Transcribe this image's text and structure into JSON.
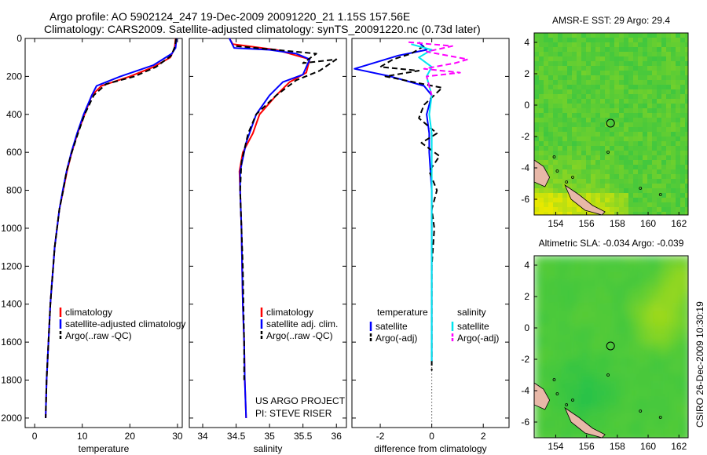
{
  "header": {
    "line1": "Argo profile: AO 5902124_247 19-Dec-2009 20091220_21 1.15S 157.56E",
    "line2": "Climatology: CARS2009. Satellite-adjusted climatology: synTS_20091220.nc (0.73d later)"
  },
  "side_stamp": "CSIRO 26-Dec-2009 10:30:19",
  "colors": {
    "climatology": "#ff0000",
    "satellite": "#0000ff",
    "argo": "#000000",
    "salinity_satellite": "#00e5ee",
    "salinity_argo": "#ff00ff",
    "map_green": "#22c14a",
    "map_yellow": "#e8e800",
    "land": "#e8b8a8"
  },
  "chart_data": [
    {
      "type": "line",
      "panel": "temperature",
      "xlabel": "temperature",
      "ylabel": "",
      "xlim": [
        -2,
        31
      ],
      "ylim": [
        2050,
        0
      ],
      "xticks": [
        0,
        10,
        20,
        30
      ],
      "yticks": [
        0,
        200,
        400,
        600,
        800,
        1000,
        1200,
        1400,
        1600,
        1800,
        2000
      ],
      "legend": [
        "climatology",
        "satellite-adjusted climatology",
        "Argo(..raw -QC)"
      ],
      "series": [
        {
          "name": "climatology",
          "color": "#ff0000",
          "dash": false,
          "points": [
            [
              29.6,
              0
            ],
            [
              29.4,
              50
            ],
            [
              28.5,
              100
            ],
            [
              25,
              150
            ],
            [
              20,
              200
            ],
            [
              14,
              250
            ],
            [
              12,
              300
            ],
            [
              10.5,
              400
            ],
            [
              9,
              500
            ],
            [
              7.8,
              600
            ],
            [
              6.8,
              700
            ],
            [
              6,
              800
            ],
            [
              5.2,
              900
            ],
            [
              4.7,
              1000
            ],
            [
              4.2,
              1100
            ],
            [
              3.9,
              1200
            ],
            [
              3.6,
              1300
            ],
            [
              3.3,
              1400
            ],
            [
              3.1,
              1500
            ],
            [
              2.9,
              1600
            ],
            [
              2.7,
              1700
            ],
            [
              2.5,
              1800
            ],
            [
              2.4,
              1900
            ],
            [
              2.3,
              2000
            ]
          ]
        },
        {
          "name": "satellite-adjusted climatology",
          "color": "#0000ff",
          "dash": false,
          "points": [
            [
              29.8,
              0
            ],
            [
              29.6,
              50
            ],
            [
              28.8,
              80
            ],
            [
              25,
              140
            ],
            [
              18,
              200
            ],
            [
              13,
              250
            ],
            [
              12,
              300
            ],
            [
              10.3,
              400
            ],
            [
              8.9,
              500
            ],
            [
              7.7,
              600
            ],
            [
              6.7,
              700
            ],
            [
              5.9,
              800
            ],
            [
              5.2,
              900
            ],
            [
              4.7,
              1000
            ],
            [
              4.2,
              1100
            ],
            [
              3.9,
              1200
            ],
            [
              3.6,
              1300
            ],
            [
              3.3,
              1400
            ],
            [
              3.1,
              1500
            ],
            [
              2.9,
              1600
            ],
            [
              2.7,
              1700
            ],
            [
              2.5,
              1800
            ],
            [
              2.4,
              1900
            ],
            [
              2.3,
              2000
            ]
          ]
        },
        {
          "name": "Argo(..raw -QC)",
          "color": "#000000",
          "dash": true,
          "points": [
            [
              29.7,
              0
            ],
            [
              29.5,
              40
            ],
            [
              28.7,
              90
            ],
            [
              25.5,
              150
            ],
            [
              21,
              200
            ],
            [
              15,
              240
            ],
            [
              12.4,
              300
            ],
            [
              10.5,
              400
            ],
            [
              9.1,
              500
            ],
            [
              7.8,
              600
            ],
            [
              6.7,
              700
            ],
            [
              6,
              800
            ],
            [
              5.2,
              900
            ],
            [
              4.7,
              1000
            ],
            [
              4.2,
              1100
            ],
            [
              3.9,
              1200
            ],
            [
              3.6,
              1300
            ],
            [
              3.3,
              1400
            ],
            [
              3.1,
              1500
            ],
            [
              2.9,
              1600
            ],
            [
              2.7,
              1700
            ],
            [
              2.5,
              1800
            ],
            [
              2.4,
              1900
            ],
            [
              2.3,
              2000
            ]
          ]
        }
      ]
    },
    {
      "type": "line",
      "panel": "salinity",
      "xlabel": "salinity",
      "ylabel": "",
      "xlim": [
        33.8,
        36.15
      ],
      "ylim": [
        2050,
        0
      ],
      "xticks": [
        34,
        34.5,
        35,
        35.5,
        36
      ],
      "xticklabels": [
        "34",
        "34.5",
        "35",
        "35.5",
        "36"
      ],
      "legend": [
        "climatology",
        "satellite adj. clim.",
        "Argo(..raw -QC)"
      ],
      "annotation": [
        "US ARGO PROJECT",
        "PI: STEVE RISER"
      ],
      "series": [
        {
          "name": "climatology",
          "color": "#ff0000",
          "dash": false,
          "points": [
            [
              34.4,
              0
            ],
            [
              34.45,
              30
            ],
            [
              35.1,
              60
            ],
            [
              35.6,
              110
            ],
            [
              35.55,
              180
            ],
            [
              35.3,
              230
            ],
            [
              35.1,
              300
            ],
            [
              34.85,
              400
            ],
            [
              34.75,
              500
            ],
            [
              34.6,
              600
            ],
            [
              34.55,
              700
            ],
            [
              34.56,
              800
            ],
            [
              34.57,
              900
            ],
            [
              34.58,
              1000
            ],
            [
              34.59,
              1200
            ],
            [
              34.6,
              1400
            ],
            [
              34.62,
              1600
            ],
            [
              34.63,
              1800
            ],
            [
              34.65,
              2000
            ]
          ]
        },
        {
          "name": "satellite adj. clim.",
          "color": "#0000ff",
          "dash": false,
          "points": [
            [
              34.4,
              0
            ],
            [
              34.47,
              50
            ],
            [
              35.0,
              60
            ],
            [
              35.4,
              80
            ],
            [
              35.6,
              110
            ],
            [
              35.5,
              190
            ],
            [
              35.2,
              230
            ],
            [
              35.0,
              300
            ],
            [
              34.8,
              400
            ],
            [
              34.65,
              550
            ],
            [
              34.56,
              700
            ],
            [
              34.56,
              800
            ],
            [
              34.57,
              900
            ],
            [
              34.58,
              1000
            ],
            [
              34.59,
              1200
            ],
            [
              34.6,
              1400
            ],
            [
              34.62,
              1600
            ],
            [
              34.63,
              1800
            ],
            [
              34.65,
              2000
            ]
          ]
        },
        {
          "name": "Argo(..raw -QC)",
          "color": "#000000",
          "dash": true,
          "points": [
            [
              34.5,
              40
            ],
            [
              35.7,
              80
            ],
            [
              35.5,
              130
            ],
            [
              36.0,
              110
            ],
            [
              35.75,
              170
            ],
            [
              35.4,
              220
            ],
            [
              35.1,
              300
            ],
            [
              34.8,
              400
            ],
            [
              34.68,
              500
            ],
            [
              34.58,
              650
            ],
            [
              34.56,
              800
            ],
            [
              34.58,
              1000
            ],
            [
              34.6,
              1200
            ],
            [
              34.61,
              1400
            ],
            [
              34.62,
              1600
            ],
            [
              34.62,
              1800
            ]
          ]
        }
      ]
    },
    {
      "type": "line",
      "panel": "difference",
      "xlabel": "difference from climatology",
      "ylabel": "",
      "xlim": [
        -3.1,
        3.0
      ],
      "ylim": [
        2050,
        0
      ],
      "xticks": [
        -2,
        0,
        2
      ],
      "xticklabels": [
        "-2",
        "0",
        "2"
      ],
      "legend_temperature_heading": "temperature",
      "legend_salinity_heading": "salinity",
      "legend": [
        "satellite",
        "Argo(-adj)",
        "satellite",
        "Argo(-adj)"
      ],
      "series": [
        {
          "name": "temperature satellite",
          "color": "#0000ff",
          "dash": false,
          "points": [
            [
              -0.5,
              20
            ],
            [
              -0.2,
              60
            ],
            [
              -1.3,
              90
            ],
            [
              -3.0,
              160
            ],
            [
              -1.6,
              200
            ],
            [
              -0.3,
              250
            ],
            [
              0,
              300
            ],
            [
              -0.2,
              400
            ],
            [
              -0.1,
              500
            ],
            [
              -0.1,
              600
            ],
            [
              0,
              800
            ],
            [
              0,
              1200
            ],
            [
              0,
              1600
            ],
            [
              0,
              1700
            ]
          ]
        },
        {
          "name": "temperature Argo(-adj)",
          "color": "#000000",
          "dash": true,
          "points": [
            [
              -0.3,
              40
            ],
            [
              -0.8,
              80
            ],
            [
              -1.5,
              110
            ],
            [
              -2.0,
              150
            ],
            [
              -0.5,
              170
            ],
            [
              -1.8,
              200
            ],
            [
              0.4,
              260
            ],
            [
              -0.3,
              350
            ],
            [
              -0.5,
              420
            ],
            [
              0.2,
              500
            ],
            [
              -0.4,
              550
            ],
            [
              0.3,
              620
            ],
            [
              -0.1,
              700
            ],
            [
              0.2,
              800
            ],
            [
              0,
              900
            ],
            [
              0.1,
              1000
            ],
            [
              0,
              1200
            ],
            [
              0,
              1600
            ],
            [
              0,
              1750
            ]
          ]
        },
        {
          "name": "salinity satellite",
          "color": "#00e5ee",
          "dash": false,
          "points": [
            [
              -0.8,
              30
            ],
            [
              0,
              60
            ],
            [
              -0.5,
              100
            ],
            [
              0,
              150
            ],
            [
              -0.2,
              200
            ],
            [
              0,
              300
            ],
            [
              -0.1,
              400
            ],
            [
              0,
              500
            ],
            [
              0,
              1000
            ],
            [
              0,
              1500
            ],
            [
              0,
              1700
            ]
          ]
        },
        {
          "name": "salinity Argo(-adj)",
          "color": "#ff00ff",
          "dash": true,
          "points": [
            [
              -0.9,
              20
            ],
            [
              0.8,
              40
            ],
            [
              -0.2,
              70
            ],
            [
              1.4,
              110
            ],
            [
              0.9,
              130
            ],
            [
              -0.3,
              160
            ],
            [
              1.1,
              180
            ],
            [
              -0.2,
              200
            ],
            [
              0,
              300
            ]
          ]
        }
      ]
    },
    {
      "type": "heatmap",
      "panel": "sst_map",
      "title": "AMSR-E SST: 29 Argo: 29.4",
      "xlim": [
        152.6,
        162.6
      ],
      "ylim": [
        -7,
        4.6
      ],
      "xticks": [
        154,
        156,
        158,
        160,
        162
      ],
      "yticks": [
        -6,
        -4,
        -2,
        0,
        2,
        4
      ],
      "float_position": [
        157.56,
        -1.15
      ]
    },
    {
      "type": "heatmap",
      "panel": "sla_map",
      "title": "Altimetric SLA: -0.034 Argo: -0.039",
      "xlim": [
        152.6,
        162.6
      ],
      "ylim": [
        -7,
        4.6
      ],
      "xticks": [
        154,
        156,
        158,
        160,
        162
      ],
      "yticks": [
        -6,
        -4,
        -2,
        0,
        2,
        4
      ],
      "float_position": [
        157.56,
        -1.15
      ]
    }
  ]
}
